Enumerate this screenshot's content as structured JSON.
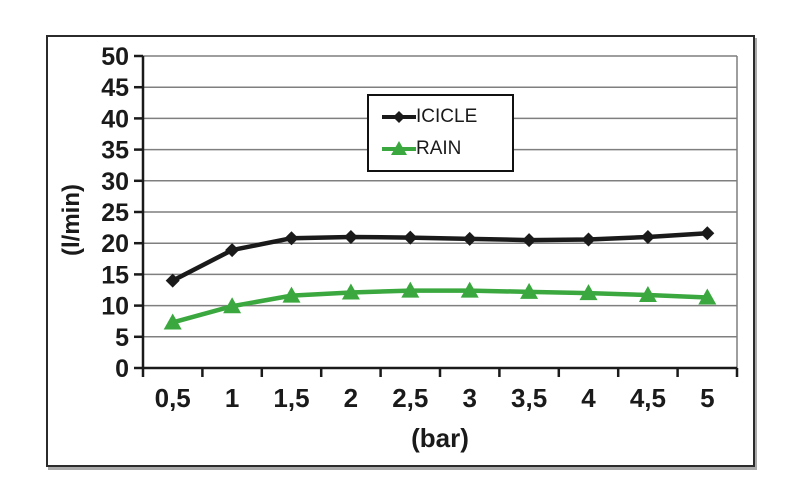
{
  "chart_data": {
    "type": "line",
    "title": "",
    "xlabel": "(bar)",
    "ylabel": "(l/min)",
    "x": [
      0.5,
      1,
      1.5,
      2,
      2.5,
      3,
      3.5,
      4,
      4.5,
      5
    ],
    "x_tick_labels": [
      "0,5",
      "1",
      "1,5",
      "2",
      "2,5",
      "3",
      "3,5",
      "4",
      "4,5",
      "5"
    ],
    "ylim": [
      0,
      50
    ],
    "y_tick_step": 5,
    "grid": "horizontal",
    "legend_position": "upper-center-inside",
    "series": [
      {
        "name": "ICICLE",
        "marker": "diamond",
        "color": "#1a1a1a",
        "values": [
          14,
          18.9,
          20.8,
          21.0,
          20.9,
          20.7,
          20.5,
          20.6,
          21.0,
          21.6
        ]
      },
      {
        "name": "RAIN",
        "marker": "triangle",
        "color": "#3aa83e",
        "values": [
          7.3,
          9.9,
          11.6,
          12.1,
          12.4,
          12.4,
          12.2,
          12.0,
          11.7,
          11.3
        ]
      }
    ],
    "colors": {
      "gridline": "#7f7f7f",
      "axis": "#1a1a1a",
      "plot_background": "#ffffff",
      "frame_border": "#2b2b2b"
    }
  }
}
